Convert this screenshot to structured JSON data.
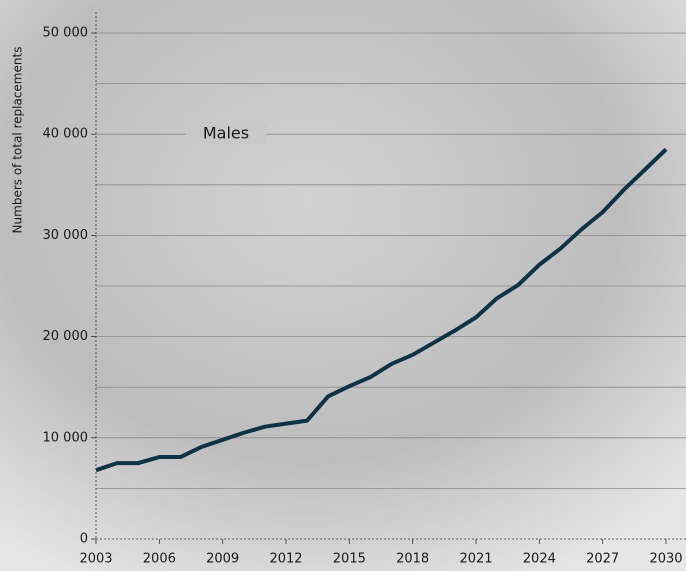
{
  "chart_data": {
    "type": "line",
    "ylabel": "Numbers of total replacements",
    "x": [
      2003,
      2004,
      2005,
      2006,
      2007,
      2008,
      2009,
      2010,
      2011,
      2012,
      2013,
      2014,
      2015,
      2016,
      2017,
      2018,
      2019,
      2020,
      2021,
      2022,
      2023,
      2024,
      2025,
      2026,
      2027,
      2028,
      2029,
      2030
    ],
    "series": [
      {
        "name": "Males",
        "color": "#0d3347",
        "values": [
          6800,
          7500,
          7500,
          8100,
          8100,
          9100,
          9800,
          10500,
          11100,
          11400,
          11700,
          14100,
          15100,
          16000,
          17300,
          18200,
          19400,
          20600,
          21900,
          23800,
          25100,
          27100,
          28700,
          30600,
          32300,
          34500,
          36500,
          38500
        ]
      }
    ],
    "xlim": [
      2003,
      2030
    ],
    "xticks": [
      2003,
      2006,
      2009,
      2012,
      2015,
      2018,
      2021,
      2024,
      2027,
      2030
    ],
    "ylim": [
      0,
      50000
    ],
    "yticks": [
      0,
      {
        "value": 10000,
        "label": "10 000"
      },
      {
        "value": 20000,
        "label": "20 000"
      },
      {
        "value": 30000,
        "label": "30 000"
      },
      {
        "value": 40000,
        "label": "40 000"
      },
      {
        "value": 50000,
        "label": "50 000"
      }
    ],
    "minor_yticks": [
      5000,
      15000,
      25000,
      35000,
      45000
    ],
    "grid": true
  }
}
